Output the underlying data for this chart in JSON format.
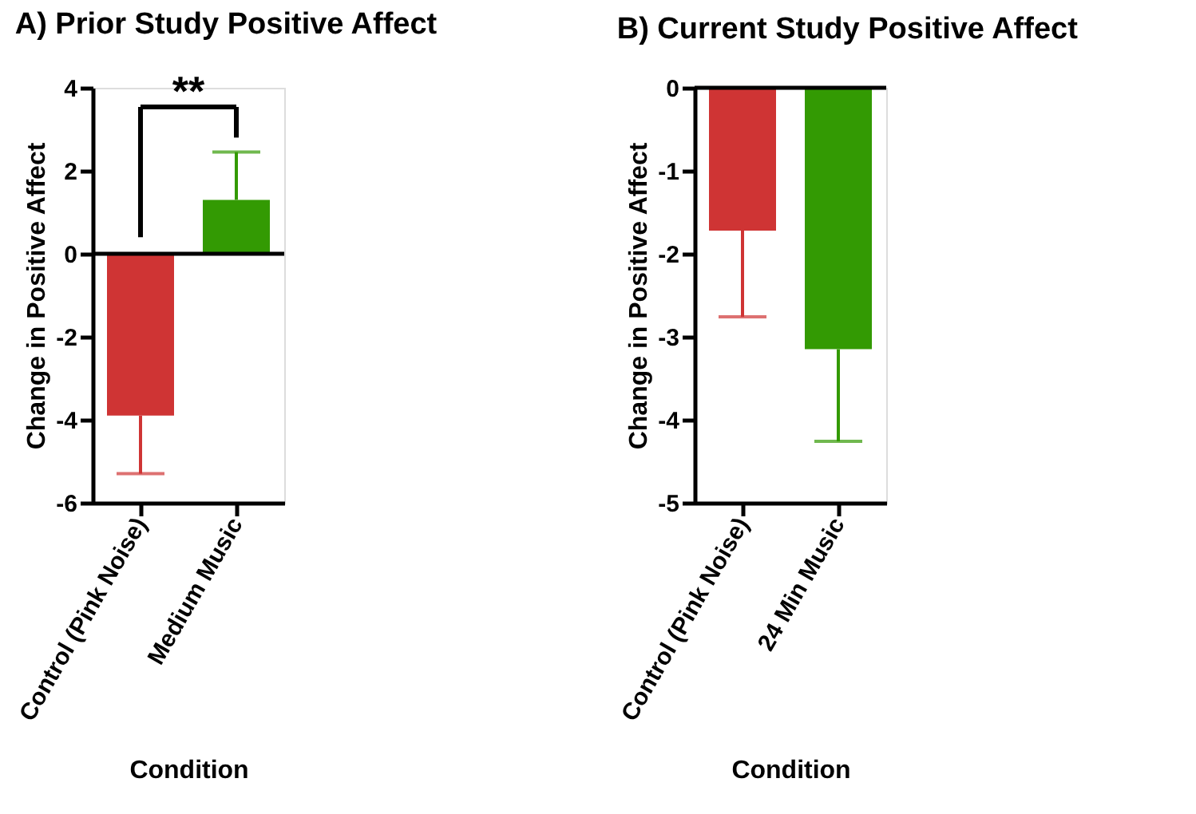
{
  "chart_data": [
    {
      "type": "bar",
      "title": "A) Prior Study Positive Affect",
      "xlabel": "Condition",
      "ylabel": "Change in Positive Affect",
      "categories": [
        "Control (Pink Noise)",
        "Medium Music"
      ],
      "values": [
        -3.9,
        1.3
      ],
      "colors": [
        "#cf3434",
        "#339a03"
      ],
      "errors": [
        [
          -5.3,
          -3.9
        ],
        [
          1.3,
          2.45
        ]
      ],
      "ylim": [
        -6,
        4
      ],
      "yticks": [
        -6,
        -4,
        -2,
        0,
        2,
        4
      ],
      "ref_lines": [
        {
          "axis": "y",
          "value": 0,
          "color": "#000000"
        }
      ],
      "annotations": [
        "**"
      ],
      "grid": false
    },
    {
      "type": "bar",
      "title": "B) Current Study Positive Affect",
      "xlabel": "Condition",
      "ylabel": "Change in Positive Affect",
      "categories": [
        "Control (Pink Noise)",
        "24 Min Music"
      ],
      "values": [
        -1.72,
        -3.15
      ],
      "colors": [
        "#cf3434",
        "#339a03"
      ],
      "errors": [
        [
          -2.76,
          -1.72
        ],
        [
          -4.26,
          -3.15
        ]
      ],
      "ylim": [
        -5,
        0
      ],
      "yticks": [
        -5,
        -4,
        -3,
        -2,
        -1,
        0
      ],
      "ref_lines": [
        {
          "axis": "y",
          "value": 0,
          "color": "#000000"
        }
      ],
      "grid": false
    }
  ]
}
